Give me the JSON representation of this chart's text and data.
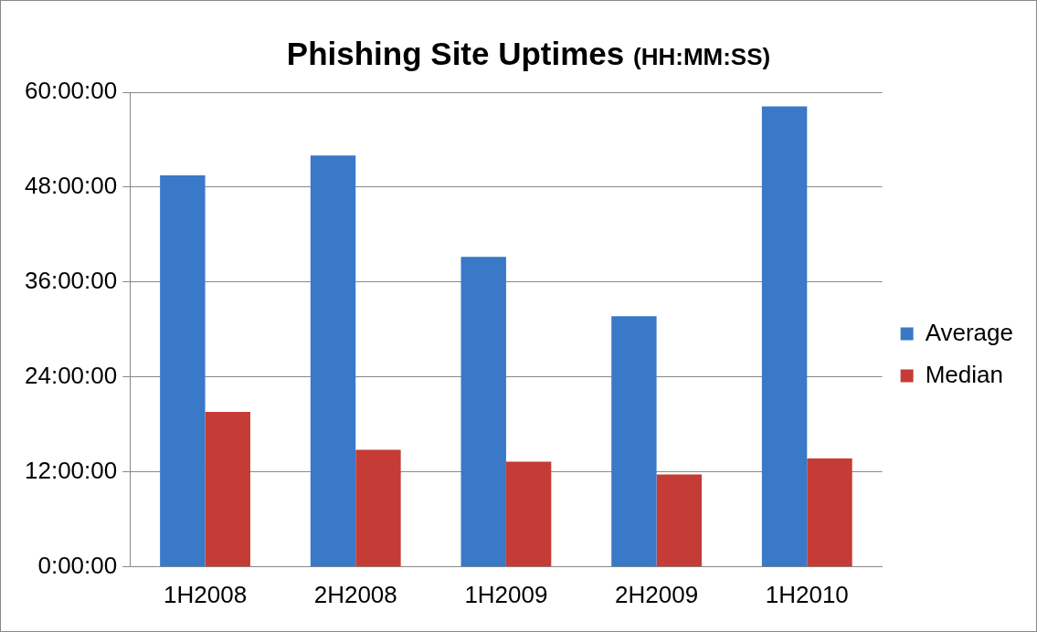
{
  "chart_data": {
    "type": "bar",
    "title": "Phishing Site Uptimes",
    "subtitle": "(HH:MM:SS)",
    "categories": [
      "1H2008",
      "2H2008",
      "1H2009",
      "2H2009",
      "1H2010"
    ],
    "series": [
      {
        "name": "Average",
        "color": "#3a78c8",
        "values": [
          49.5,
          52,
          39.2,
          31.7,
          58.2
        ]
      },
      {
        "name": "Median",
        "color": "#c43c35",
        "values": [
          19.6,
          14.8,
          13.3,
          11.7,
          13.7
        ]
      }
    ],
    "ylim": [
      0,
      60
    ],
    "yticks": [
      {
        "value": 0,
        "label": "0:00:00"
      },
      {
        "value": 12,
        "label": "12:00:00"
      },
      {
        "value": 24,
        "label": "24:00:00"
      },
      {
        "value": 36,
        "label": "36:00:00"
      },
      {
        "value": 48,
        "label": "48:00:00"
      },
      {
        "value": 60,
        "label": "60:00:00"
      }
    ],
    "grid": "y",
    "legend": "right"
  }
}
